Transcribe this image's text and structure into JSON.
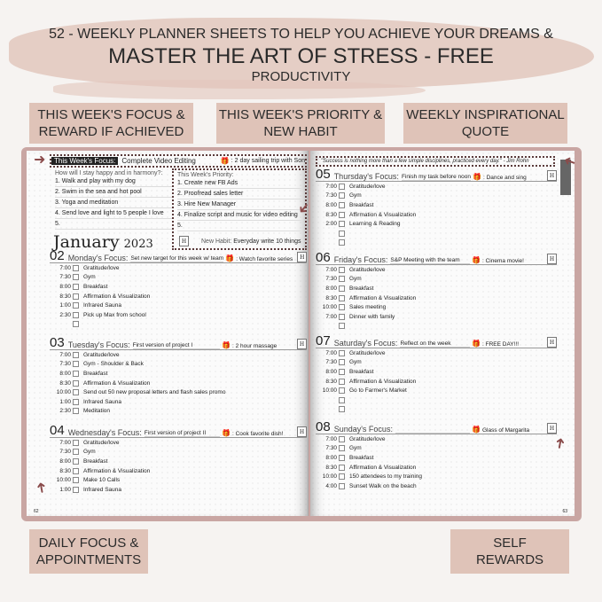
{
  "header": {
    "line1": "52 - WEEKLY PLANNER  SHEETS TO HELP YOU ACHIEVE YOUR DREAMS &",
    "line2": "MASTER THE ART OF STRESS - FREE",
    "line3": "PRODUCTIVITY"
  },
  "labels": {
    "focus": "THIS WEEK'S FOCUS & REWARD IF ACHIEVED",
    "priority": "THIS WEEK'S PRIORITY & NEW HABIT",
    "quote": "WEEKLY INSPIRATIONAL QUOTE",
    "daily": "DAILY FOCUS & APPOINTMENTS",
    "rewards": "SELF REWARDS"
  },
  "colors": {
    "accent": "#dfc3b8",
    "cover": "#c9a6a3",
    "dotted": "#5a3b3b"
  },
  "week": {
    "focus_label": "This Week's Focus:",
    "focus": "Complete Video Editing",
    "reward": ": 2 day sailing trip with Son",
    "happy_q": "How will I stay happy and in harmony?:",
    "happy": [
      "1. Walk and play with my dog",
      "2. Swim in the sea and hot pool",
      "3. Yoga and meditation",
      "4. Send love and light to 5 people I love",
      "5."
    ],
    "priority_label": "This Week's Priority:",
    "priority": [
      "1. Create new FB Ads",
      "2. Proofread sales letter",
      "3. Hire New Manager",
      "4. Finalize script and music for video editing",
      "5."
    ],
    "month": "January",
    "year": "2023",
    "habit_label": "New Habit:",
    "habit": "Everyday write 10 things",
    "h": "H"
  },
  "quote": "\"Success is nothing more than a few simple disciplines, practiced every day.\" - Jim Rohn",
  "days_left": [
    {
      "num": "02",
      "label": "Monday's Focus:",
      "focus": "Set new target for this week w/ team",
      "reward": ": Watch favorite series",
      "rows": [
        [
          "7:00",
          "Gratitude/love"
        ],
        [
          "7:30",
          "Gym"
        ],
        [
          "8:00",
          "Breakfast"
        ],
        [
          "8:30",
          "Affirmation & Visualization"
        ],
        [
          "1:00",
          "Infrared Sauna"
        ],
        [
          "2:30",
          "Pick up Max from school"
        ],
        [
          "",
          ""
        ]
      ]
    },
    {
      "num": "03",
      "label": "Tuesday's Focus:",
      "focus": "First version of project I",
      "reward": ": 2 hour massage",
      "rows": [
        [
          "7:00",
          "Gratitude/love"
        ],
        [
          "7:30",
          "Gym - Shoulder & Back"
        ],
        [
          "8:00",
          "Breakfast"
        ],
        [
          "8:30",
          "Affirmation & Visualization"
        ],
        [
          "10:00",
          "Send out 50 new proposal letters and flash sales promo"
        ],
        [
          "1:00",
          "Infrared Sauna"
        ],
        [
          "2:30",
          "Meditation"
        ]
      ]
    },
    {
      "num": "04",
      "label": "Wednesday's Focus:",
      "focus": "First version of project II",
      "reward": ": Cook favorite dish!",
      "rows": [
        [
          "7:00",
          "Gratitude/love"
        ],
        [
          "7:30",
          "Gym"
        ],
        [
          "8:00",
          "Breakfast"
        ],
        [
          "8:30",
          "Affirmation & Visualization"
        ],
        [
          "10:00",
          "Make 10 Calls"
        ],
        [
          "1:00",
          "Infrared Sauna"
        ]
      ]
    }
  ],
  "days_right": [
    {
      "num": "05",
      "label": "Thursday's Focus:",
      "focus": "Finish my task before noon",
      "reward": ": Dance and sing",
      "rows": [
        [
          "7:00",
          "Gratitude/love"
        ],
        [
          "7:30",
          "Gym"
        ],
        [
          "8:00",
          "Breakfast"
        ],
        [
          "8:30",
          "Affirmation & Visualization"
        ],
        [
          "2:00",
          "Learning & Reading"
        ],
        [
          "",
          ""
        ],
        [
          "",
          ""
        ]
      ]
    },
    {
      "num": "06",
      "label": "Friday's Focus:",
      "focus": "S&P Meeting with the team",
      "reward": ": Cinema movie!",
      "rows": [
        [
          "7:00",
          "Gratitude/love"
        ],
        [
          "7:30",
          "Gym"
        ],
        [
          "8:00",
          "Breakfast"
        ],
        [
          "8:30",
          "Affirmation & Visualization"
        ],
        [
          "10:00",
          "Sales meeting"
        ],
        [
          "7:00",
          "Dinner with family"
        ],
        [
          "",
          ""
        ]
      ]
    },
    {
      "num": "07",
      "label": "Saturday's Focus:",
      "focus": "Reflect on the week",
      "reward": ": FREE DAY!!!",
      "rows": [
        [
          "7:00",
          "Gratitude/love"
        ],
        [
          "7:30",
          "Gym"
        ],
        [
          "8:00",
          "Breakfast"
        ],
        [
          "8:30",
          "Affirmation & Visualization"
        ],
        [
          "10:00",
          "Go to Farmer's Market"
        ],
        [
          "",
          ""
        ],
        [
          "",
          ""
        ]
      ]
    },
    {
      "num": "08",
      "label": "Sunday's Focus:",
      "focus": "",
      "reward": "Glass of Margarita",
      "rows": [
        [
          "7:00",
          "Gratitude/love"
        ],
        [
          "7:30",
          "Gym"
        ],
        [
          "8:00",
          "Breakfast"
        ],
        [
          "8:30",
          "Affirmation & Visualization"
        ],
        [
          "10:00",
          "150 attendees to my training"
        ],
        [
          "4:00",
          "Sunset Walk on the beach"
        ]
      ]
    }
  ],
  "page_numbers": {
    "left": "62",
    "right": "63"
  }
}
